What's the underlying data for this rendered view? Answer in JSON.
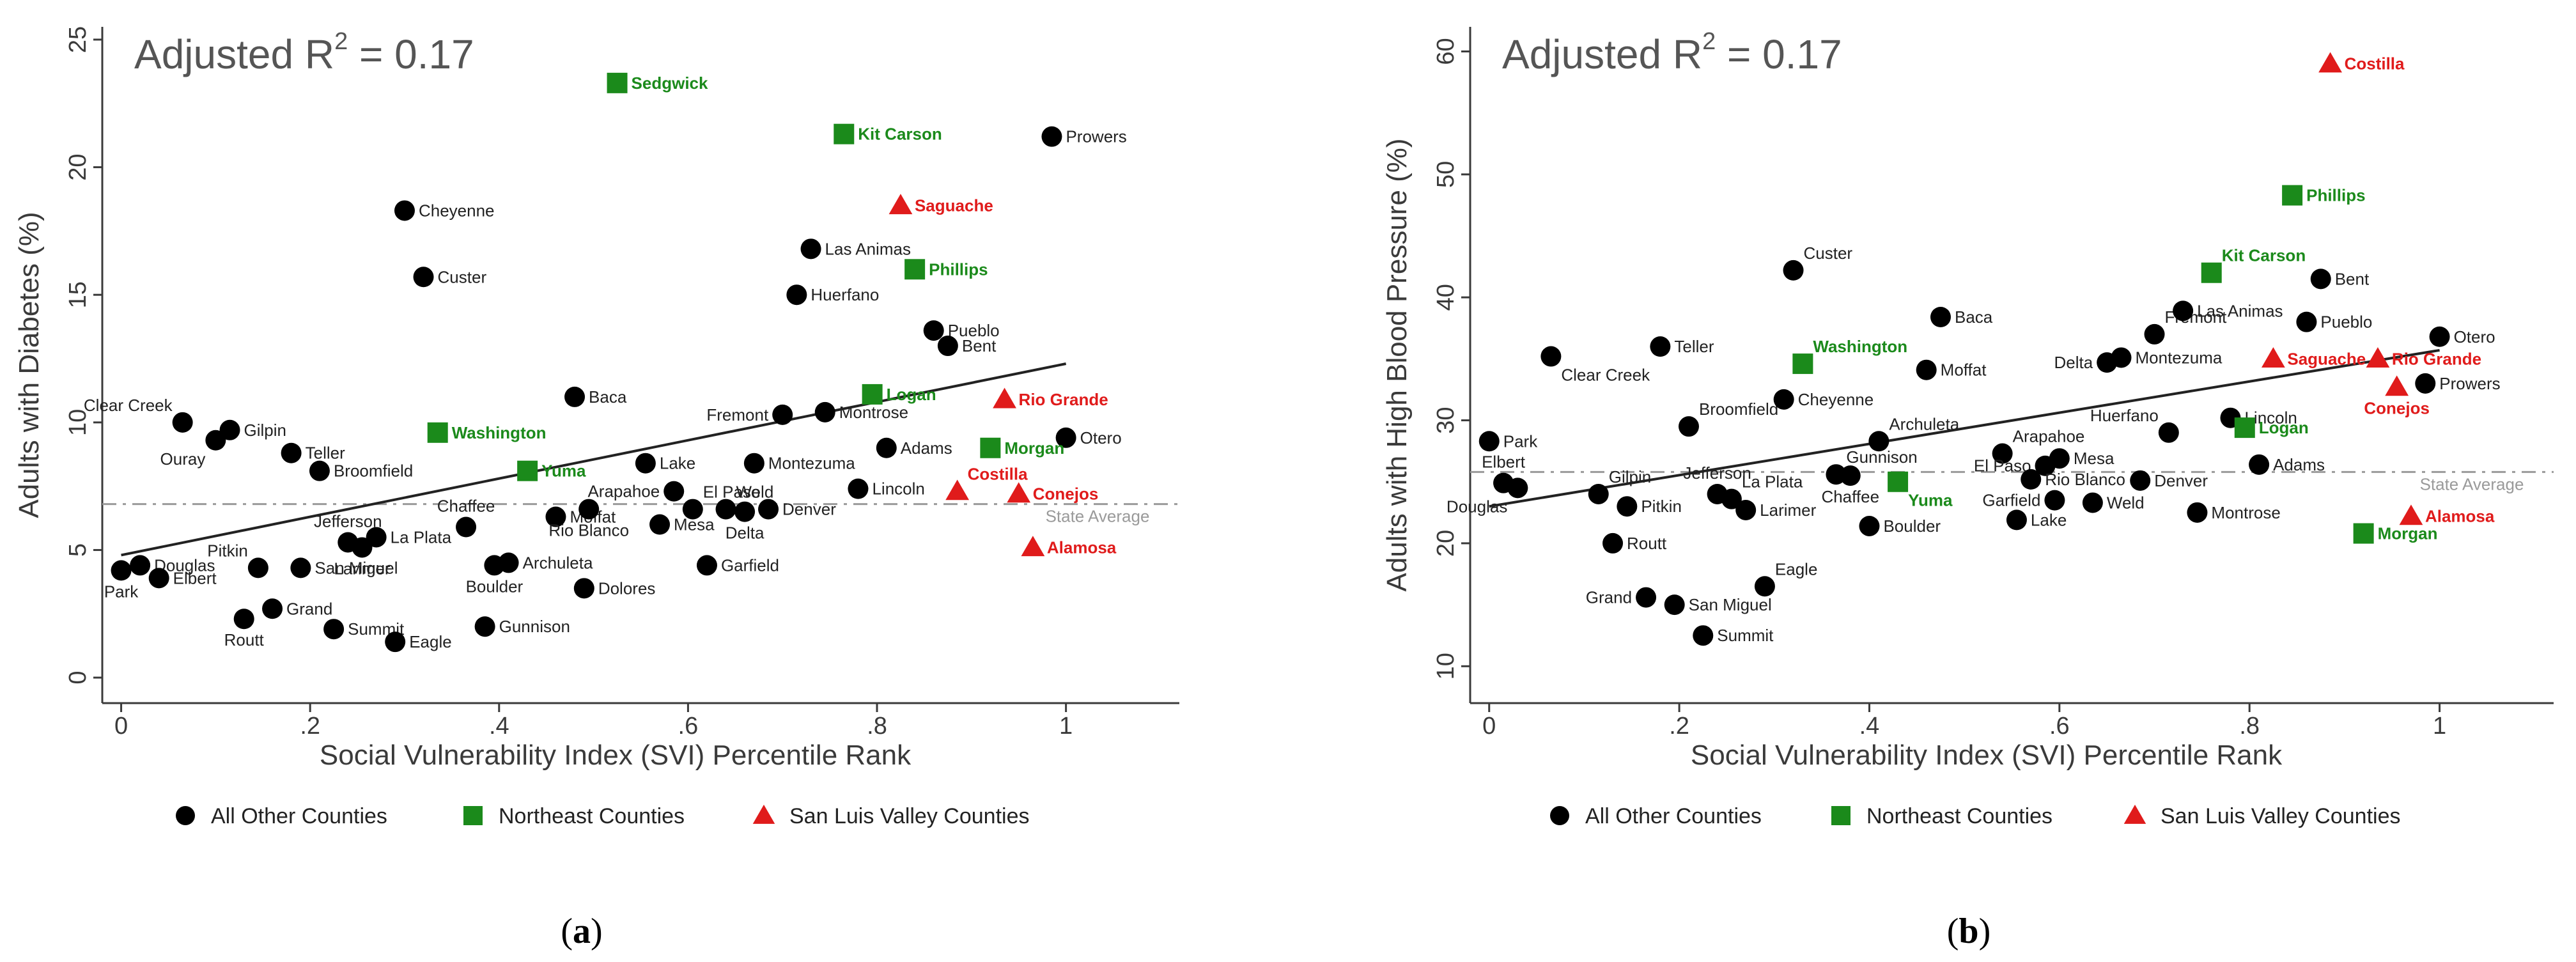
{
  "colors": {
    "other": "#000000",
    "northeast": "#1b8a1b",
    "slv": "#e01b1b",
    "fit": "#222222",
    "ref": "#9a9a9a",
    "axis": "#3a3a3a"
  },
  "legend": [
    {
      "key": "other",
      "label": "All Other Counties",
      "marker": "circle"
    },
    {
      "key": "northeast",
      "label": "Northeast Counties",
      "marker": "square"
    },
    {
      "key": "slv",
      "label": "San Luis Valley Counties",
      "marker": "triangle"
    }
  ],
  "chart_data": [
    {
      "id": "a",
      "type": "scatter",
      "caption": {
        "open": "(",
        "letter": "a",
        "close": ")"
      },
      "annotation": {
        "text": "Adjusted R",
        "sup": "2",
        "rest": " = 0.17"
      },
      "xlabel": "Social Vulnerability Index (SVI) Percentile Rank",
      "ylabel": "Adults with Diabetes (%)",
      "xlim": [
        -0.02,
        1.12
      ],
      "ylim": [
        -1,
        25.5
      ],
      "xticks": [
        {
          "v": 0,
          "label": "0"
        },
        {
          "v": 0.2,
          "label": ".2"
        },
        {
          "v": 0.4,
          "label": ".4"
        },
        {
          "v": 0.6,
          "label": ".6"
        },
        {
          "v": 0.8,
          "label": ".8"
        },
        {
          "v": 1,
          "label": "1"
        }
      ],
      "yticks": [
        {
          "v": 0,
          "label": "0"
        },
        {
          "v": 5,
          "label": "5"
        },
        {
          "v": 10,
          "label": "10"
        },
        {
          "v": 15,
          "label": "15"
        },
        {
          "v": 20,
          "label": "20"
        },
        {
          "v": 25,
          "label": "25"
        }
      ],
      "fit_line": {
        "x": [
          0,
          1
        ],
        "y": [
          4.8,
          12.3
        ]
      },
      "reference_line": {
        "y": 6.8,
        "label": "State Average"
      },
      "points": [
        {
          "name": "Park",
          "x": 0.0,
          "y": 4.2,
          "g": "other",
          "lp": "below"
        },
        {
          "name": "Douglas",
          "x": 0.02,
          "y": 4.4,
          "g": "other",
          "lp": "right"
        },
        {
          "name": "Elbert",
          "x": 0.04,
          "y": 3.9,
          "g": "other",
          "lp": "right"
        },
        {
          "name": "Clear Creek",
          "x": 0.065,
          "y": 10.0,
          "g": "other",
          "lp": "upleft"
        },
        {
          "name": "Ouray",
          "x": 0.1,
          "y": 9.3,
          "g": "other",
          "lp": "belowleft"
        },
        {
          "name": "Gilpin",
          "x": 0.115,
          "y": 9.7,
          "g": "other",
          "lp": "right"
        },
        {
          "name": "Teller",
          "x": 0.18,
          "y": 8.8,
          "g": "other",
          "lp": "right"
        },
        {
          "name": "Broomfield",
          "x": 0.21,
          "y": 8.1,
          "g": "other",
          "lp": "right"
        },
        {
          "name": "Pitkin",
          "x": 0.145,
          "y": 4.3,
          "g": "other",
          "lp": "upleft"
        },
        {
          "name": "Grand",
          "x": 0.16,
          "y": 2.7,
          "g": "other",
          "lp": "right"
        },
        {
          "name": "Routt",
          "x": 0.13,
          "y": 2.3,
          "g": "other",
          "lp": "below"
        },
        {
          "name": "San Miguel",
          "x": 0.19,
          "y": 4.3,
          "g": "other",
          "lp": "right"
        },
        {
          "name": "Jefferson",
          "x": 0.24,
          "y": 5.3,
          "g": "other",
          "lp": "up"
        },
        {
          "name": "Larimer",
          "x": 0.255,
          "y": 5.1,
          "g": "other",
          "lp": "below"
        },
        {
          "name": "La Plata",
          "x": 0.27,
          "y": 5.5,
          "g": "other",
          "lp": "right"
        },
        {
          "name": "Summit",
          "x": 0.225,
          "y": 1.9,
          "g": "other",
          "lp": "right"
        },
        {
          "name": "Eagle",
          "x": 0.29,
          "y": 1.4,
          "g": "other",
          "lp": "right"
        },
        {
          "name": "Cheyenne",
          "x": 0.3,
          "y": 18.3,
          "g": "other",
          "lp": "right"
        },
        {
          "name": "Custer",
          "x": 0.32,
          "y": 15.7,
          "g": "other",
          "lp": "right"
        },
        {
          "name": "Chaffee",
          "x": 0.365,
          "y": 5.9,
          "g": "other",
          "lp": "up"
        },
        {
          "name": "Boulder",
          "x": 0.395,
          "y": 4.4,
          "g": "other",
          "lp": "below"
        },
        {
          "name": "Archuleta",
          "x": 0.41,
          "y": 4.5,
          "g": "other",
          "lp": "right"
        },
        {
          "name": "Gunnison",
          "x": 0.385,
          "y": 2.0,
          "g": "other",
          "lp": "right"
        },
        {
          "name": "Moffat",
          "x": 0.46,
          "y": 6.3,
          "g": "other",
          "lp": "right"
        },
        {
          "name": "Rio Blanco",
          "x": 0.495,
          "y": 6.6,
          "g": "other",
          "lp": "below"
        },
        {
          "name": "Dolores",
          "x": 0.49,
          "y": 3.5,
          "g": "other",
          "lp": "right"
        },
        {
          "name": "Baca",
          "x": 0.48,
          "y": 11.0,
          "g": "other",
          "lp": "right"
        },
        {
          "name": "Lake",
          "x": 0.555,
          "y": 8.4,
          "g": "other",
          "lp": "right"
        },
        {
          "name": "Arapahoe",
          "x": 0.585,
          "y": 7.3,
          "g": "other",
          "lp": "left"
        },
        {
          "name": "Mesa",
          "x": 0.57,
          "y": 6.0,
          "g": "other",
          "lp": "right"
        },
        {
          "name": "El Paso",
          "x": 0.605,
          "y": 6.6,
          "g": "other",
          "lp": "upright"
        },
        {
          "name": "Weld",
          "x": 0.64,
          "y": 6.6,
          "g": "other",
          "lp": "upright"
        },
        {
          "name": "Delta",
          "x": 0.66,
          "y": 6.5,
          "g": "other",
          "lp": "below"
        },
        {
          "name": "Denver",
          "x": 0.685,
          "y": 6.6,
          "g": "other",
          "lp": "right"
        },
        {
          "name": "Montezuma",
          "x": 0.67,
          "y": 8.4,
          "g": "other",
          "lp": "right"
        },
        {
          "name": "Garfield",
          "x": 0.62,
          "y": 4.4,
          "g": "other",
          "lp": "right"
        },
        {
          "name": "Fremont",
          "x": 0.7,
          "y": 10.3,
          "g": "other",
          "lp": "left"
        },
        {
          "name": "Montrose",
          "x": 0.745,
          "y": 10.4,
          "g": "other",
          "lp": "right"
        },
        {
          "name": "Adams",
          "x": 0.81,
          "y": 9.0,
          "g": "other",
          "lp": "right"
        },
        {
          "name": "Lincoln",
          "x": 0.78,
          "y": 7.4,
          "g": "other",
          "lp": "right"
        },
        {
          "name": "Las Animas",
          "x": 0.73,
          "y": 16.8,
          "g": "other",
          "lp": "right"
        },
        {
          "name": "Huerfano",
          "x": 0.715,
          "y": 15.0,
          "g": "other",
          "lp": "right"
        },
        {
          "name": "Pueblo",
          "x": 0.86,
          "y": 13.6,
          "g": "other",
          "lp": "right"
        },
        {
          "name": "Bent",
          "x": 0.875,
          "y": 13.0,
          "g": "other",
          "lp": "right"
        },
        {
          "name": "Prowers",
          "x": 0.985,
          "y": 21.2,
          "g": "other",
          "lp": "right"
        },
        {
          "name": "Otero",
          "x": 1.0,
          "y": 9.4,
          "g": "other",
          "lp": "right"
        },
        {
          "name": "Sedgwick",
          "x": 0.525,
          "y": 23.3,
          "g": "northeast",
          "lp": "right"
        },
        {
          "name": "Kit Carson",
          "x": 0.765,
          "y": 21.3,
          "g": "northeast",
          "lp": "right"
        },
        {
          "name": "Phillips",
          "x": 0.84,
          "y": 16.0,
          "g": "northeast",
          "lp": "right"
        },
        {
          "name": "Washington",
          "x": 0.335,
          "y": 9.6,
          "g": "northeast",
          "lp": "right"
        },
        {
          "name": "Yuma",
          "x": 0.43,
          "y": 8.1,
          "g": "northeast",
          "lp": "right"
        },
        {
          "name": "Logan",
          "x": 0.795,
          "y": 11.1,
          "g": "northeast",
          "lp": "right"
        },
        {
          "name": "Morgan",
          "x": 0.92,
          "y": 9.0,
          "g": "northeast",
          "lp": "right"
        },
        {
          "name": "Saguache",
          "x": 0.825,
          "y": 18.5,
          "g": "slv",
          "lp": "right"
        },
        {
          "name": "Rio Grande",
          "x": 0.935,
          "y": 10.9,
          "g": "slv",
          "lp": "right"
        },
        {
          "name": "Costilla",
          "x": 0.885,
          "y": 7.3,
          "g": "slv",
          "lp": "upright"
        },
        {
          "name": "Conejos",
          "x": 0.95,
          "y": 7.2,
          "g": "slv",
          "lp": "right"
        },
        {
          "name": "Alamosa",
          "x": 0.965,
          "y": 5.1,
          "g": "slv",
          "lp": "right"
        }
      ]
    },
    {
      "id": "b",
      "type": "scatter",
      "caption": {
        "open": "(",
        "letter": "b",
        "close": ")"
      },
      "annotation": {
        "text": "Adjusted R",
        "sup": "2",
        "rest": " = 0.17"
      },
      "xlabel": "Social Vulnerability Index (SVI) Percentile Rank",
      "ylabel": "Adults with High Blood Pressure (%)",
      "xlim": [
        -0.02,
        1.12
      ],
      "ylim": [
        7,
        62
      ],
      "xticks": [
        {
          "v": 0,
          "label": "0"
        },
        {
          "v": 0.2,
          "label": ".2"
        },
        {
          "v": 0.4,
          "label": ".4"
        },
        {
          "v": 0.6,
          "label": ".6"
        },
        {
          "v": 0.8,
          "label": ".8"
        },
        {
          "v": 1,
          "label": "1"
        }
      ],
      "yticks": [
        {
          "v": 10,
          "label": "10"
        },
        {
          "v": 20,
          "label": "20"
        },
        {
          "v": 30,
          "label": "30"
        },
        {
          "v": 40,
          "label": "40"
        },
        {
          "v": 50,
          "label": "50"
        },
        {
          "v": 60,
          "label": "60"
        }
      ],
      "fit_line": {
        "x": [
          0,
          1
        ],
        "y": [
          23.0,
          35.7
        ]
      },
      "reference_line": {
        "y": 25.8,
        "label": "State Average"
      },
      "points": [
        {
          "name": "Park",
          "x": 0.0,
          "y": 28.3,
          "g": "other",
          "lp": "right"
        },
        {
          "name": "Elbert",
          "x": 0.015,
          "y": 24.9,
          "g": "other",
          "lp": "up"
        },
        {
          "name": "Douglas",
          "x": 0.03,
          "y": 24.5,
          "g": "other",
          "lp": "belowleft"
        },
        {
          "name": "Clear Creek",
          "x": 0.065,
          "y": 35.2,
          "g": "other",
          "lp": "belowright"
        },
        {
          "name": "Gilpin",
          "x": 0.115,
          "y": 24.0,
          "g": "other",
          "lp": "upright"
        },
        {
          "name": "Pitkin",
          "x": 0.145,
          "y": 23.0,
          "g": "other",
          "lp": "right"
        },
        {
          "name": "Routt",
          "x": 0.13,
          "y": 20.0,
          "g": "other",
          "lp": "right"
        },
        {
          "name": "Teller",
          "x": 0.18,
          "y": 36.0,
          "g": "other",
          "lp": "right"
        },
        {
          "name": "Broomfield",
          "x": 0.21,
          "y": 29.5,
          "g": "other",
          "lp": "upright"
        },
        {
          "name": "Grand",
          "x": 0.165,
          "y": 15.6,
          "g": "other",
          "lp": "left"
        },
        {
          "name": "San Miguel",
          "x": 0.195,
          "y": 15.0,
          "g": "other",
          "lp": "right"
        },
        {
          "name": "Summit",
          "x": 0.225,
          "y": 12.5,
          "g": "other",
          "lp": "right"
        },
        {
          "name": "Jefferson",
          "x": 0.24,
          "y": 24.0,
          "g": "other",
          "lp": "up"
        },
        {
          "name": "La Plata",
          "x": 0.255,
          "y": 23.6,
          "g": "other",
          "lp": "upright"
        },
        {
          "name": "Larimer",
          "x": 0.27,
          "y": 22.7,
          "g": "other",
          "lp": "right"
        },
        {
          "name": "Eagle",
          "x": 0.29,
          "y": 16.5,
          "g": "other",
          "lp": "upright"
        },
        {
          "name": "Cheyenne",
          "x": 0.31,
          "y": 31.7,
          "g": "other",
          "lp": "right"
        },
        {
          "name": "Custer",
          "x": 0.32,
          "y": 42.2,
          "g": "other",
          "lp": "upright"
        },
        {
          "name": "Gunnison",
          "x": 0.365,
          "y": 25.6,
          "g": "other",
          "lp": "upright"
        },
        {
          "name": "Chaffee",
          "x": 0.38,
          "y": 25.5,
          "g": "other",
          "lp": "below"
        },
        {
          "name": "Boulder",
          "x": 0.4,
          "y": 21.4,
          "g": "other",
          "lp": "right"
        },
        {
          "name": "Archuleta",
          "x": 0.41,
          "y": 28.3,
          "g": "other",
          "lp": "upright"
        },
        {
          "name": "Baca",
          "x": 0.475,
          "y": 38.4,
          "g": "other",
          "lp": "right"
        },
        {
          "name": "Moffat",
          "x": 0.46,
          "y": 34.1,
          "g": "other",
          "lp": "right"
        },
        {
          "name": "Arapahoe",
          "x": 0.54,
          "y": 27.3,
          "g": "other",
          "lp": "upright"
        },
        {
          "name": "El Paso",
          "x": 0.585,
          "y": 26.3,
          "g": "other",
          "lp": "left"
        },
        {
          "name": "Mesa",
          "x": 0.6,
          "y": 26.9,
          "g": "other",
          "lp": "right"
        },
        {
          "name": "Rio Blanco",
          "x": 0.57,
          "y": 25.2,
          "g": "other",
          "lp": "right"
        },
        {
          "name": "Garfield",
          "x": 0.595,
          "y": 23.5,
          "g": "other",
          "lp": "left"
        },
        {
          "name": "Weld",
          "x": 0.635,
          "y": 23.3,
          "g": "other",
          "lp": "right"
        },
        {
          "name": "Lake",
          "x": 0.555,
          "y": 21.9,
          "g": "other",
          "lp": "right"
        },
        {
          "name": "Huerfano",
          "x": 0.715,
          "y": 29.0,
          "g": "other",
          "lp": "upleft"
        },
        {
          "name": "Denver",
          "x": 0.685,
          "y": 25.1,
          "g": "other",
          "lp": "right"
        },
        {
          "name": "Montrose",
          "x": 0.745,
          "y": 22.5,
          "g": "other",
          "lp": "right"
        },
        {
          "name": "Delta",
          "x": 0.65,
          "y": 34.7,
          "g": "other",
          "lp": "left"
        },
        {
          "name": "Montezuma",
          "x": 0.665,
          "y": 35.1,
          "g": "other",
          "lp": "right"
        },
        {
          "name": "Fremont",
          "x": 0.7,
          "y": 37.0,
          "g": "other",
          "lp": "upright"
        },
        {
          "name": "Las Animas",
          "x": 0.73,
          "y": 38.9,
          "g": "other",
          "lp": "right"
        },
        {
          "name": "Lincoln",
          "x": 0.78,
          "y": 30.2,
          "g": "other",
          "lp": "right"
        },
        {
          "name": "Adams",
          "x": 0.81,
          "y": 26.4,
          "g": "other",
          "lp": "right"
        },
        {
          "name": "Pueblo",
          "x": 0.86,
          "y": 38.0,
          "g": "other",
          "lp": "right"
        },
        {
          "name": "Bent",
          "x": 0.875,
          "y": 41.5,
          "g": "other",
          "lp": "right"
        },
        {
          "name": "Otero",
          "x": 1.0,
          "y": 36.8,
          "g": "other",
          "lp": "right"
        },
        {
          "name": "Prowers",
          "x": 0.985,
          "y": 33.0,
          "g": "other",
          "lp": "right"
        },
        {
          "name": "Washington",
          "x": 0.33,
          "y": 34.6,
          "g": "northeast",
          "lp": "upright"
        },
        {
          "name": "Yuma",
          "x": 0.43,
          "y": 25.0,
          "g": "northeast",
          "lp": "belowright"
        },
        {
          "name": "Kit Carson",
          "x": 0.76,
          "y": 42.0,
          "g": "northeast",
          "lp": "upright"
        },
        {
          "name": "Phillips",
          "x": 0.845,
          "y": 48.3,
          "g": "northeast",
          "lp": "right"
        },
        {
          "name": "Logan",
          "x": 0.795,
          "y": 29.4,
          "g": "northeast",
          "lp": "right"
        },
        {
          "name": "Morgan",
          "x": 0.92,
          "y": 20.8,
          "g": "northeast",
          "lp": "right"
        },
        {
          "name": "Costilla",
          "x": 0.885,
          "y": 59.0,
          "g": "slv",
          "lp": "right"
        },
        {
          "name": "Saguache",
          "x": 0.825,
          "y": 35.0,
          "g": "slv",
          "lp": "right"
        },
        {
          "name": "Rio Grande",
          "x": 0.935,
          "y": 35.0,
          "g": "slv",
          "lp": "right"
        },
        {
          "name": "Conejos",
          "x": 0.955,
          "y": 32.7,
          "g": "slv",
          "lp": "below"
        },
        {
          "name": "Alamosa",
          "x": 0.97,
          "y": 22.2,
          "g": "slv",
          "lp": "right"
        }
      ]
    }
  ]
}
